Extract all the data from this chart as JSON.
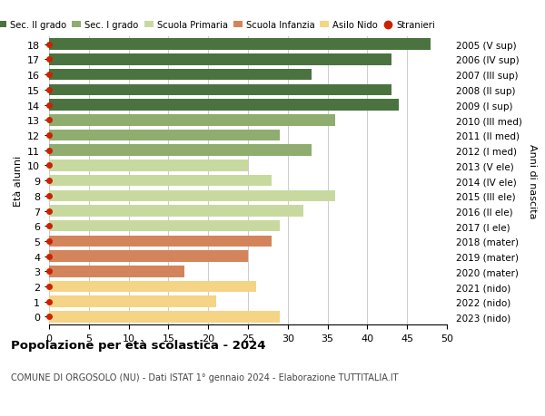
{
  "ages": [
    0,
    1,
    2,
    3,
    4,
    5,
    6,
    7,
    8,
    9,
    10,
    11,
    12,
    13,
    14,
    15,
    16,
    17,
    18
  ],
  "labels_right": [
    "2023 (nido)",
    "2022 (nido)",
    "2021 (nido)",
    "2020 (mater)",
    "2019 (mater)",
    "2018 (mater)",
    "2017 (I ele)",
    "2016 (II ele)",
    "2015 (III ele)",
    "2014 (IV ele)",
    "2013 (V ele)",
    "2012 (I med)",
    "2011 (II med)",
    "2010 (III med)",
    "2009 (I sup)",
    "2008 (II sup)",
    "2007 (III sup)",
    "2006 (IV sup)",
    "2005 (V sup)"
  ],
  "values": [
    29,
    21,
    26,
    17,
    25,
    28,
    29,
    32,
    36,
    28,
    25,
    33,
    29,
    36,
    44,
    43,
    33,
    43,
    48
  ],
  "stranieri": [
    0,
    0,
    0,
    0,
    0,
    0,
    0,
    0,
    0,
    0,
    0,
    0,
    0,
    0,
    0,
    0,
    0,
    1,
    0
  ],
  "bar_colors": [
    "#f5d485",
    "#f5d485",
    "#f5d485",
    "#d4845a",
    "#d4845a",
    "#d4845a",
    "#c8d9a0",
    "#c8d9a0",
    "#c8d9a0",
    "#c8d9a0",
    "#c8d9a0",
    "#8fad6e",
    "#8fad6e",
    "#8fad6e",
    "#4a7340",
    "#4a7340",
    "#4a7340",
    "#4a7340",
    "#4a7340"
  ],
  "legend_items": [
    {
      "label": "Sec. II grado",
      "color": "#4a7340"
    },
    {
      "label": "Sec. I grado",
      "color": "#8fad6e"
    },
    {
      "label": "Scuola Primaria",
      "color": "#c8d9a0"
    },
    {
      "label": "Scuola Infanzia",
      "color": "#d4845a"
    },
    {
      "label": "Asilo Nido",
      "color": "#f5d485"
    },
    {
      "label": "Stranieri",
      "color": "#cc2200"
    }
  ],
  "title": "Popolazione per età scolastica - 2024",
  "subtitle": "COMUNE DI ORGOSOLO (NU) - Dati ISTAT 1° gennaio 2024 - Elaborazione TUTTITALIA.IT",
  "ylabel_left": "Età alunni",
  "ylabel_right": "Anni di nascita",
  "xlim": [
    0,
    50
  ],
  "xticks": [
    0,
    5,
    10,
    15,
    20,
    25,
    30,
    35,
    40,
    45,
    50
  ],
  "stranieri_color": "#cc2200",
  "background_color": "#ffffff",
  "bar_height": 0.75,
  "grid_color": "#cccccc"
}
